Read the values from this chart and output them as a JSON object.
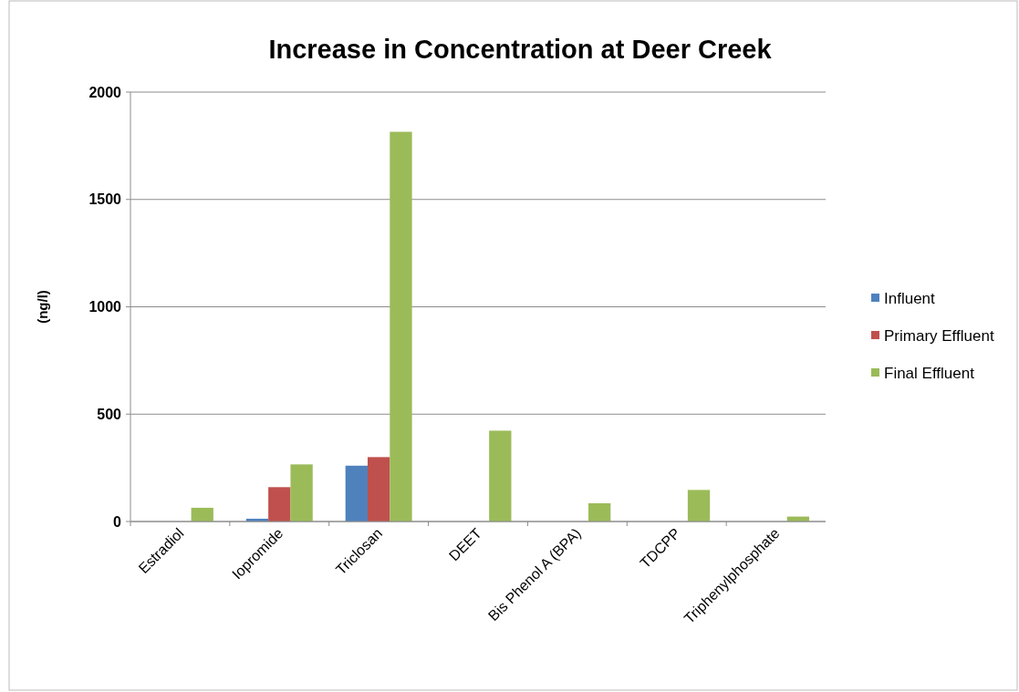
{
  "chart_data": {
    "type": "bar",
    "title": "Increase in Concentration at Deer Creek",
    "ylabel": "(ng/l)",
    "categories": [
      "Estradiol",
      "Iopromide",
      "Triclosan",
      "DEET",
      "Bis Phenol A (BPA)",
      "TDCPP",
      "Triphenylphosphate"
    ],
    "series": [
      {
        "name": "Influent",
        "color": "#4f81bd",
        "values": [
          0,
          13,
          260,
          0,
          0,
          0,
          0
        ]
      },
      {
        "name": "Primary Effluent",
        "color": "#c0504d",
        "values": [
          0,
          160,
          300,
          0,
          0,
          0,
          0
        ]
      },
      {
        "name": "Final Effluent",
        "color": "#9bbb59",
        "values": [
          64,
          266,
          1815,
          423,
          85,
          147,
          23
        ]
      }
    ],
    "ylim": [
      0,
      2000
    ],
    "yticks": [
      0,
      500,
      1000,
      1500,
      2000
    ],
    "grid": "y",
    "legend": "right"
  }
}
